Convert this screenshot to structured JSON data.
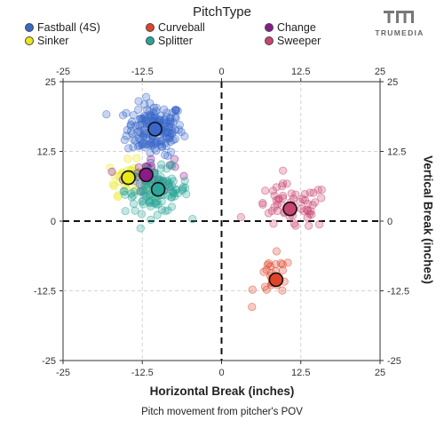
{
  "legend": {
    "title": "PitchType",
    "items": [
      {
        "label": "Fastball (4S)",
        "color": "#3a67c9"
      },
      {
        "label": "Curveball",
        "color": "#e0452a"
      },
      {
        "label": "Change",
        "color": "#8b1a8b"
      },
      {
        "label": "Sinker",
        "color": "#e8e81a"
      },
      {
        "label": "Splitter",
        "color": "#2aa597"
      },
      {
        "label": "Sweeper",
        "color": "#c8466f"
      }
    ]
  },
  "logo": {
    "text": "TRUMEDIA"
  },
  "caption": "Pitch movement from pitcher's POV",
  "chart_data": {
    "type": "scatter",
    "xlabel": "Horizontal Break (inches)",
    "ylabel": "Vertical Break (inches)",
    "xlim": [
      -25,
      25
    ],
    "ylim": [
      -25,
      25
    ],
    "ticks": [
      "-25",
      "-12.5",
      "0",
      "12.5",
      "25"
    ],
    "tick_values": [
      -25,
      -12.5,
      0,
      12.5,
      25
    ],
    "grid": true,
    "legend_position": "top",
    "series": [
      {
        "name": "Fastball (4S)",
        "color": "#3a67c9",
        "mean": [
          -10.5,
          16.5
        ],
        "spread": [
          2.2,
          2.3
        ],
        "count": 180
      },
      {
        "name": "Sinker",
        "color": "#e8e81a",
        "mean": [
          -14.7,
          7.8
        ],
        "spread": [
          1.6,
          1.5
        ],
        "count": 35
      },
      {
        "name": "Change",
        "color": "#8b1a8b",
        "mean": [
          -11.5,
          8.5
        ],
        "spread": [
          2.0,
          1.5
        ],
        "count": 30
      },
      {
        "name": "Splitter",
        "color": "#2aa597",
        "mean": [
          -10.2,
          5.5
        ],
        "spread": [
          2.5,
          2.0
        ],
        "count": 120
      },
      {
        "name": "Sweeper",
        "color": "#c8466f",
        "mean": [
          11.0,
          2.5
        ],
        "spread": [
          3.0,
          2.0
        ],
        "count": 60
      },
      {
        "name": "Curveball",
        "color": "#e0452a",
        "mean": [
          8.2,
          -10.3
        ],
        "spread": [
          1.5,
          2.0
        ],
        "count": 25
      }
    ],
    "average_points": [
      {
        "name": "Fastball (4S)",
        "color": "#3a67c9",
        "x": -10.5,
        "y": 16.5
      },
      {
        "name": "Sinker",
        "color": "#e8e81a",
        "x": -14.7,
        "y": 7.8
      },
      {
        "name": "Change",
        "color": "#8b1a8b",
        "x": -11.9,
        "y": 8.3
      },
      {
        "name": "Splitter",
        "color": "#2aa597",
        "x": -10.0,
        "y": 5.7
      },
      {
        "name": "Sweeper",
        "color": "#c8466f",
        "x": 10.8,
        "y": 2.2
      },
      {
        "name": "Curveball",
        "color": "#e0452a",
        "x": 8.6,
        "y": -10.5
      }
    ]
  }
}
